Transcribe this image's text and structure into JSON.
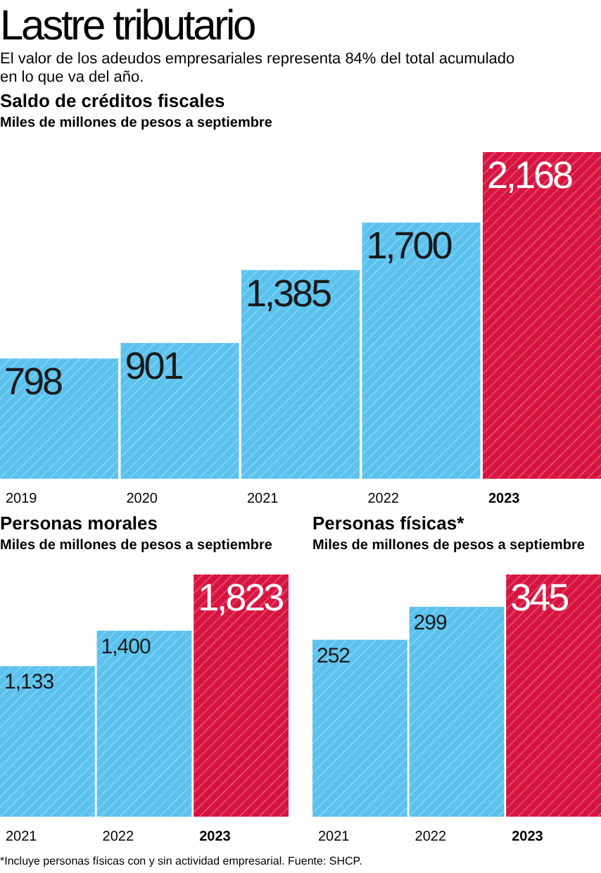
{
  "chart_data": [
    {
      "type": "other",
      "title": "Lastre tributario",
      "subtitle": "El valor de los adeudos empresariales representa 84% del total acumulado en lo que va del año.",
      "annotations": [
        "*Incluye personas físicas con y sin actividad empresarial. Fuente: SHCP."
      ]
    },
    {
      "type": "bar",
      "title": "Saldo de créditos fiscales",
      "subtitle": "Miles de millones de pesos a septiembre",
      "categories": [
        "2019",
        "2020",
        "2021",
        "2022",
        "2023"
      ],
      "values": [
        798,
        901,
        1385,
        1700,
        2168
      ],
      "value_labels": [
        "798",
        "901",
        "1,385",
        "1,700",
        "2,168"
      ],
      "colors": [
        "#5bc2ee",
        "#5bc2ee",
        "#5bc2ee",
        "#5bc2ee",
        "#d7143f"
      ]
    },
    {
      "type": "bar",
      "title": "Personas morales",
      "subtitle": "Miles de millones de pesos a septiembre",
      "categories": [
        "2021",
        "2022",
        "2023"
      ],
      "values": [
        1133,
        1400,
        1823
      ],
      "value_labels": [
        "1,133",
        "1,400",
        "1,823"
      ],
      "colors": [
        "#5bc2ee",
        "#5bc2ee",
        "#d7143f"
      ]
    },
    {
      "type": "bar",
      "title": "Personas físicas*",
      "subtitle": "Miles de millones de pesos a septiembre",
      "categories": [
        "2021",
        "2022",
        "2023"
      ],
      "values": [
        252,
        299,
        345
      ],
      "value_labels": [
        "252",
        "299",
        "345"
      ],
      "colors": [
        "#5bc2ee",
        "#5bc2ee",
        "#d7143f"
      ]
    }
  ]
}
